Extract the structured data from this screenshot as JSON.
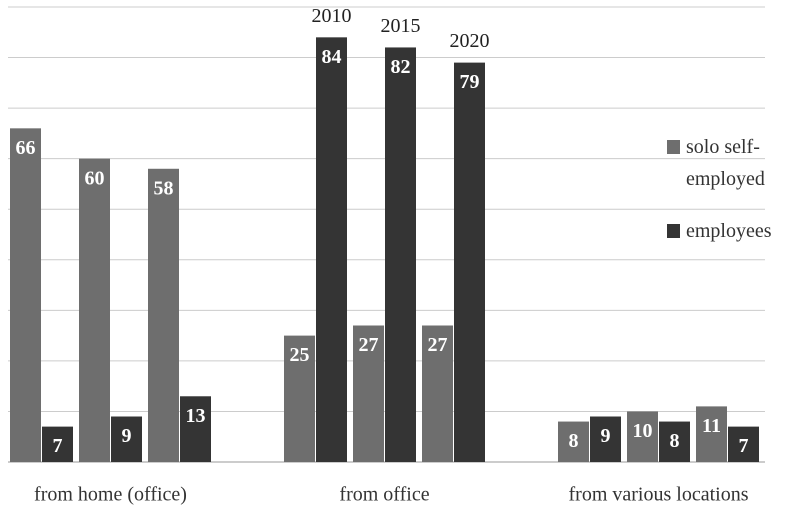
{
  "chart_data": {
    "type": "grouped-bar",
    "groups": [
      "from home (office)",
      "from office",
      "from various locations"
    ],
    "years": [
      "2010",
      "2015",
      "2020"
    ],
    "series": [
      {
        "name": "solo self-employed",
        "color": "#6e6e6e",
        "values": [
          [
            66,
            60,
            58
          ],
          [
            25,
            27,
            27
          ],
          [
            8,
            10,
            11
          ]
        ]
      },
      {
        "name": "employees",
        "color": "#343434",
        "values": [
          [
            7,
            9,
            13
          ],
          [
            84,
            82,
            79
          ],
          [
            9,
            8,
            7
          ]
        ]
      }
    ],
    "ylim": [
      0,
      90
    ],
    "yticks": [
      0,
      10,
      20,
      30,
      40,
      50,
      60,
      70,
      80,
      90
    ],
    "grid": true
  }
}
